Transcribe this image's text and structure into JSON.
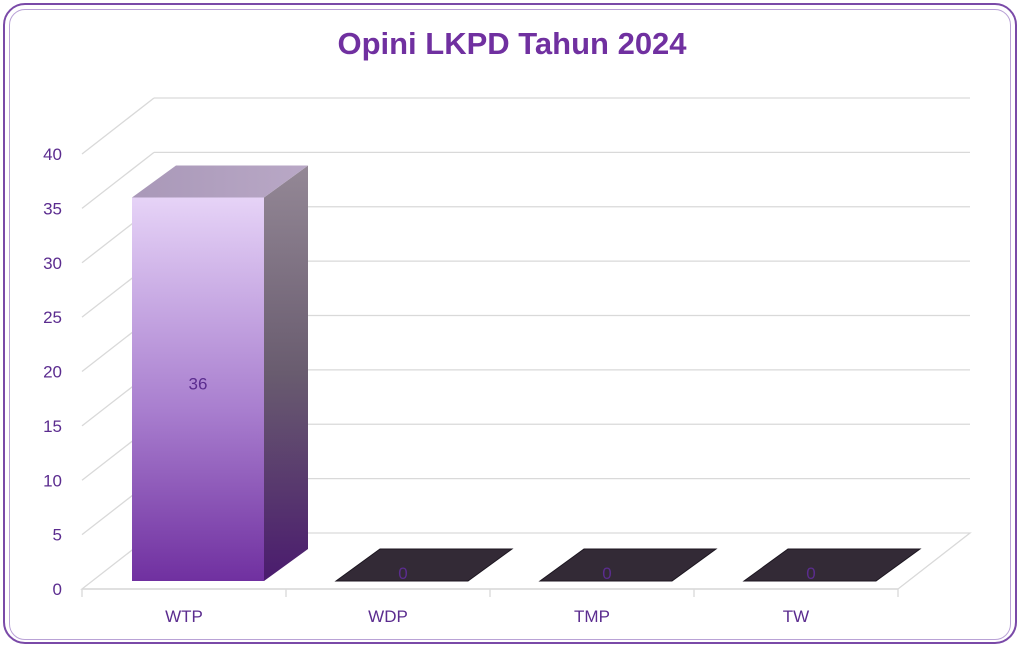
{
  "chart_data": {
    "type": "bar",
    "title": "Opini LKPD Tahun 2024",
    "categories": [
      "WTP",
      "WDP",
      "TMP",
      "TW"
    ],
    "values": [
      36,
      0,
      0,
      0
    ],
    "ylim": [
      0,
      40
    ],
    "yticks": [
      0,
      5,
      10,
      15,
      20,
      25,
      30,
      35,
      40
    ],
    "grid": true,
    "data_labels": true,
    "style": "3d-column",
    "colors": {
      "title": "#7030a0",
      "bar_top": "#e6d3f7",
      "bar_bottom": "#7030a0",
      "text": "#5b2c8f",
      "grid": "#d9d9d9",
      "frame": "#7a4aa8"
    }
  }
}
